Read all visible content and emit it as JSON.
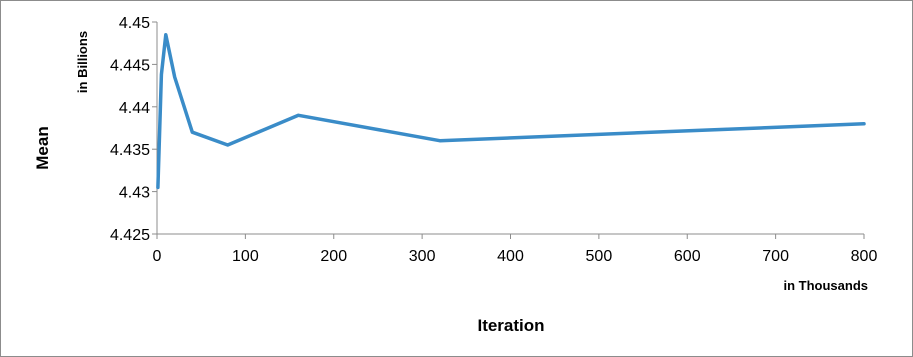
{
  "chart_data": {
    "type": "line",
    "title": "",
    "xlabel": "Iteration",
    "ylabel": "Mean",
    "x_unit_label": "in Thousands",
    "y_unit_label": "in Billions",
    "xlim": [
      0,
      800
    ],
    "ylim": [
      4.425,
      4.45
    ],
    "x_ticks": [
      "0",
      "100",
      "200",
      "300",
      "400",
      "500",
      "600",
      "700",
      "800"
    ],
    "y_ticks": [
      "4.425",
      "4.43",
      "4.435",
      "4.44",
      "4.445",
      "4.45"
    ],
    "grid": false,
    "legend": "none",
    "series": [
      {
        "color": "#3a8cc8",
        "x": [
          1,
          5,
          10,
          20,
          40,
          80,
          160,
          320,
          800
        ],
        "y": [
          4.4305,
          4.4438,
          4.4485,
          4.4435,
          4.437,
          4.4355,
          4.439,
          4.436,
          4.438
        ]
      }
    ]
  }
}
